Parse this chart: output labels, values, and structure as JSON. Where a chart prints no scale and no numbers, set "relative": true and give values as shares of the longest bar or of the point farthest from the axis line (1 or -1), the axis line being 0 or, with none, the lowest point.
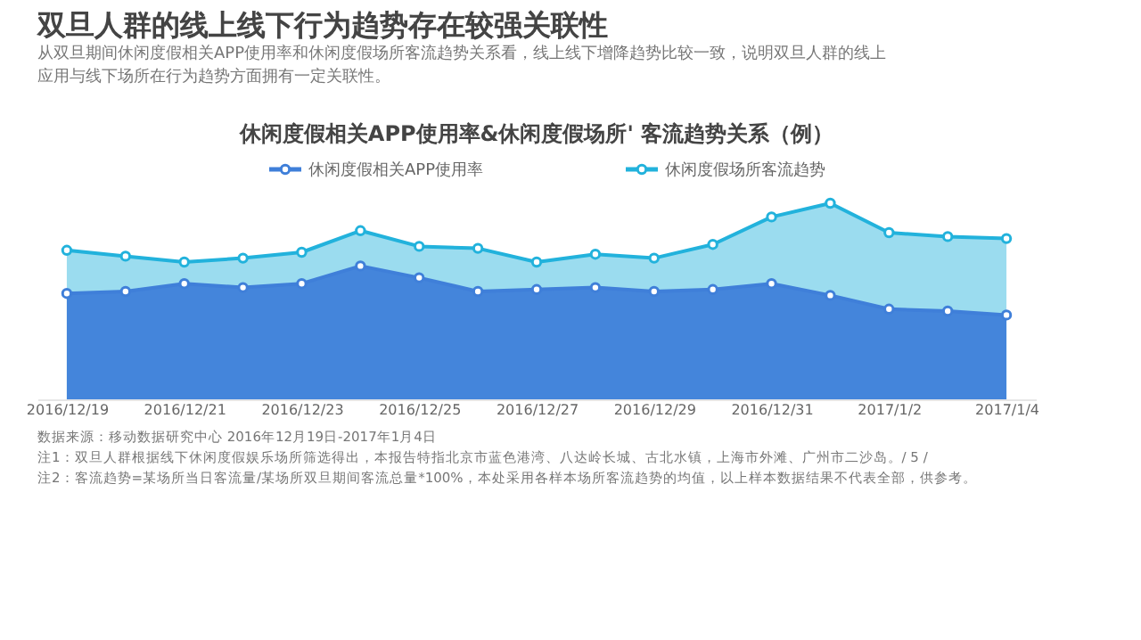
{
  "chart_data": {
    "type": "area",
    "title": "双旦人群的线上线下行为趋势存在较强关联性",
    "subtitle": "从双旦期间休闲度假相关APP使用率和休闲度假场所客流趋势关系看，线上线下增降趋势比较一致，说明双旦人群的线上应用与线下场所在行为趋势方面拥有一定关联性。",
    "annotations": [
      "休闲度假相关APP使用率&休闲度假场所' 客流趋势关系（例）",
      "数据来源：移动数据研究中心  2016年12月19日-2017年1月4日",
      "注1：双旦人群根据线下休闲度假娱乐场所筛选得出，本报告特指北京市蓝色港湾、八达岭长城、古北水镇，上海市外滩、广州市二沙岛。/ 5 /",
      "注2：客流趋势=某场所当日客流量/某场所双旦期间客流总量*100%，本处采用各样本场所客流趋势的均值，以上样本数据结果不代表全部，供参考。"
    ],
    "categories": [
      "2016/12/19",
      null,
      "2016/12/21",
      null,
      "2016/12/23",
      null,
      "2016/12/25",
      null,
      "2016/12/27",
      null,
      "2016/12/29",
      null,
      "2016/12/31",
      null,
      "2017/1/2",
      null,
      "2017/1/4"
    ],
    "relative": true,
    "legend": "top",
    "marker": "circle",
    "grid": false,
    "series": [
      {
        "name": "休闲度假相关APP使用率",
        "color": "#3f7fd9",
        "values": [
          0.54,
          0.55,
          0.59,
          0.57,
          0.59,
          0.68,
          0.62,
          0.55,
          0.56,
          0.57,
          0.55,
          0.56,
          0.59,
          0.53,
          0.46,
          0.45,
          0.43
        ]
      },
      {
        "name": "休闲度假场所客流趋势",
        "color": "#22b2dc",
        "values": [
          0.76,
          0.73,
          0.7,
          0.72,
          0.75,
          0.86,
          0.78,
          0.77,
          0.7,
          0.74,
          0.72,
          0.79,
          0.93,
          1,
          0.85,
          0.83,
          0.82
        ]
      }
    ]
  }
}
